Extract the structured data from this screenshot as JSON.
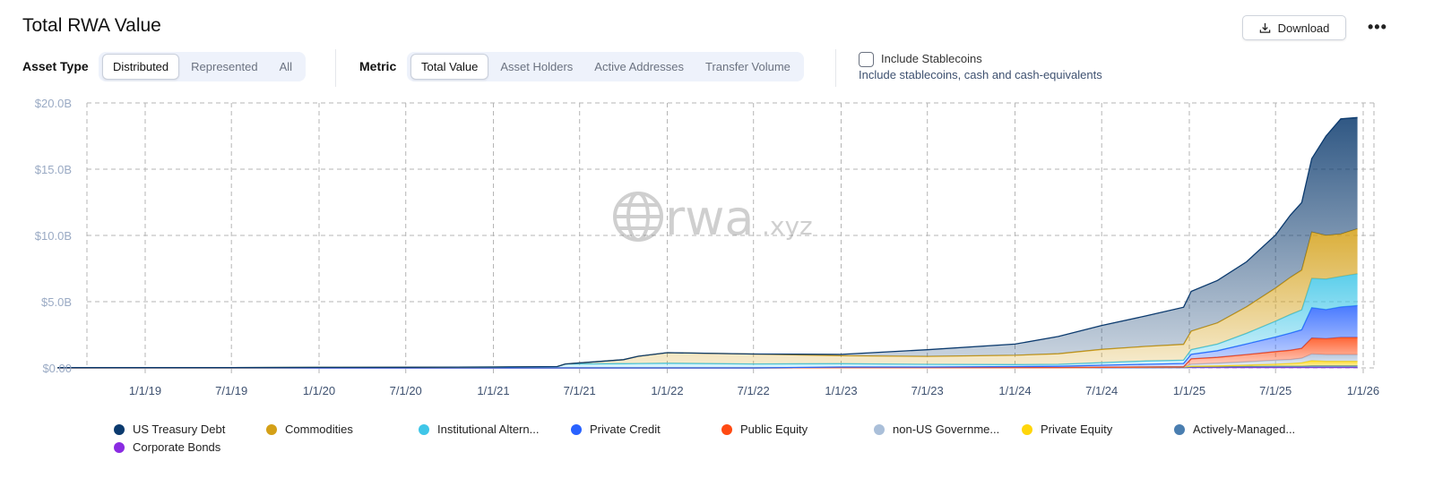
{
  "header": {
    "title": "Total RWA Value",
    "download_label": "Download",
    "more_label": "•••"
  },
  "controls": {
    "asset_type_label": "Asset Type",
    "asset_type_options": [
      "Distributed",
      "Represented",
      "All"
    ],
    "asset_type_selected": "Distributed",
    "metric_label": "Metric",
    "metric_options": [
      "Total Value",
      "Asset Holders",
      "Active Addresses",
      "Transfer Volume"
    ],
    "metric_selected": "Total Value",
    "stablecoins_label": "Include Stablecoins",
    "stablecoins_desc": "Include stablecoins, cash and cash-equivalents",
    "stablecoins_checked": false
  },
  "watermark": {
    "main": "rwa",
    "suffix": ".xyz"
  },
  "chart_data": {
    "type": "area",
    "stacked": true,
    "title": "Total RWA Value",
    "xlabel": "",
    "ylabel": "",
    "ylim": [
      0,
      20
    ],
    "y_unit": "$B",
    "y_ticks": [
      "$0.00",
      "$5.0B",
      "$10.0B",
      "$15.0B",
      "$20.0B"
    ],
    "x_ticks": [
      "1/1/19",
      "7/1/19",
      "1/1/20",
      "7/1/20",
      "1/1/21",
      "7/1/21",
      "1/1/22",
      "7/1/22",
      "1/1/23",
      "7/1/23",
      "1/1/24",
      "7/1/24",
      "1/1/25",
      "7/1/25",
      "1/1/26"
    ],
    "grid": true,
    "legend_position": "bottom",
    "x": [
      "2018-07-01",
      "2019-01-01",
      "2019-07-01",
      "2020-01-01",
      "2020-07-01",
      "2021-01-01",
      "2021-05-15",
      "2021-06-01",
      "2021-10-01",
      "2021-11-01",
      "2022-01-01",
      "2022-07-01",
      "2023-01-01",
      "2023-07-01",
      "2024-01-01",
      "2024-04-01",
      "2024-07-01",
      "2024-10-01",
      "2024-12-20",
      "2025-01-05",
      "2025-03-01",
      "2025-05-01",
      "2025-07-01",
      "2025-08-01",
      "2025-08-25",
      "2025-09-15",
      "2025-10-15",
      "2025-11-15",
      "2025-12-20"
    ],
    "series": [
      {
        "name": "Corporate Bonds",
        "color": "#8a2be2",
        "values": [
          0,
          0,
          0,
          0,
          0,
          0,
          0,
          0,
          0,
          0,
          0,
          0,
          0.02,
          0.02,
          0.02,
          0.02,
          0.02,
          0.02,
          0.03,
          0.03,
          0.03,
          0.03,
          0.03,
          0.03,
          0.03,
          0.03,
          0.03,
          0.03,
          0.03
        ]
      },
      {
        "name": "Actively-Managed...",
        "color": "#4a7eb0",
        "values": [
          0,
          0,
          0,
          0,
          0,
          0,
          0,
          0,
          0,
          0,
          0,
          0,
          0,
          0,
          0,
          0,
          0,
          0,
          0,
          0.05,
          0.06,
          0.08,
          0.1,
          0.1,
          0.1,
          0.12,
          0.12,
          0.12,
          0.12
        ]
      },
      {
        "name": "Private Equity",
        "color": "#ffd60a",
        "values": [
          0,
          0,
          0,
          0,
          0,
          0,
          0,
          0,
          0,
          0,
          0,
          0,
          0,
          0,
          0,
          0,
          0.03,
          0.05,
          0.05,
          0.05,
          0.06,
          0.1,
          0.15,
          0.2,
          0.25,
          0.4,
          0.35,
          0.35,
          0.35
        ]
      },
      {
        "name": "non-US Governme...",
        "color": "#aabfd9",
        "values": [
          0,
          0,
          0,
          0,
          0,
          0,
          0,
          0,
          0,
          0,
          0,
          0,
          0,
          0,
          0,
          0,
          0,
          0,
          0,
          0.15,
          0.2,
          0.25,
          0.3,
          0.3,
          0.35,
          0.5,
          0.5,
          0.5,
          0.5
        ]
      },
      {
        "name": "Public Equity",
        "color": "#ff4a12",
        "values": [
          0,
          0,
          0,
          0,
          0,
          0,
          0,
          0,
          0,
          0,
          0,
          0,
          0,
          0,
          0,
          0,
          0,
          0,
          0,
          0.4,
          0.45,
          0.55,
          0.65,
          0.7,
          0.75,
          1.2,
          1.2,
          1.3,
          1.3
        ]
      },
      {
        "name": "Private Credit",
        "color": "#2962ff",
        "values": [
          0,
          0,
          0,
          0,
          0,
          0,
          0,
          0,
          0,
          0,
          0,
          0,
          0.05,
          0.05,
          0.08,
          0.1,
          0.15,
          0.2,
          0.25,
          0.35,
          0.5,
          0.8,
          1.1,
          1.3,
          1.4,
          2.3,
          2.2,
          2.3,
          2.4
        ]
      },
      {
        "name": "Institutional Altern...",
        "color": "#3fc6e8",
        "values": [
          0.02,
          0.03,
          0.03,
          0.04,
          0.05,
          0.07,
          0.1,
          0.3,
          0.32,
          0.33,
          0.35,
          0.3,
          0.25,
          0.2,
          0.15,
          0.15,
          0.2,
          0.25,
          0.25,
          0.35,
          0.5,
          0.8,
          1.2,
          1.4,
          1.5,
          2.2,
          2.3,
          2.3,
          2.4
        ]
      },
      {
        "name": "Commodities",
        "color": "#d4a017",
        "values": [
          0,
          0,
          0,
          0,
          0,
          0,
          0,
          0,
          0.3,
          0.55,
          0.8,
          0.75,
          0.6,
          0.6,
          0.7,
          0.8,
          1.0,
          1.1,
          1.2,
          1.4,
          1.6,
          2.0,
          2.5,
          2.8,
          3.0,
          3.5,
          3.3,
          3.2,
          3.4
        ]
      },
      {
        "name": "US Treasury Debt",
        "color": "#0b3a6e",
        "values": [
          0,
          0,
          0,
          0,
          0,
          0,
          0,
          0,
          0,
          0,
          0,
          0,
          0.1,
          0.5,
          0.85,
          1.3,
          1.8,
          2.3,
          2.8,
          3.0,
          3.2,
          3.4,
          4.0,
          4.7,
          5.1,
          5.55,
          7.5,
          8.7,
          8.4
        ]
      }
    ],
    "legend_order": [
      "US Treasury Debt",
      "Commodities",
      "Institutional Altern...",
      "Private Credit",
      "Public Equity",
      "non-US Governme...",
      "Private Equity",
      "Actively-Managed...",
      "Corporate Bonds"
    ]
  }
}
